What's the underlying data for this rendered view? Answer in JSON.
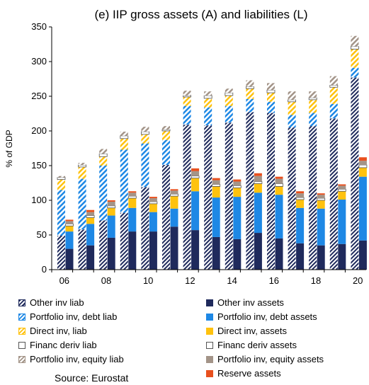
{
  "chart_data": {
    "type": "bar",
    "stacked": true,
    "paired_bars": true,
    "title": "(e) IIP gross assets (A) and liabilities (L)",
    "ylabel": "% of GDP",
    "xlabel": "",
    "ylim": [
      0,
      350
    ],
    "yticks": [
      0,
      50,
      100,
      150,
      200,
      250,
      300,
      350
    ],
    "categories": [
      "06",
      "07",
      "08",
      "09",
      "10",
      "11",
      "12",
      "13",
      "14",
      "15",
      "16",
      "17",
      "18",
      "19",
      "20"
    ],
    "xtick_labels": [
      "06",
      "08",
      "10",
      "12",
      "14",
      "16",
      "18",
      "20"
    ],
    "grid": false,
    "legend_position": "bottom",
    "series": [
      {
        "name": "Other inv liab",
        "side": "L",
        "color": "#1f2a5c",
        "pattern": "hatch",
        "values": [
          49,
          58,
          71,
          82,
          119,
          151,
          209,
          208,
          212,
          227,
          226,
          205,
          207,
          218,
          277
        ]
      },
      {
        "name": "Other inv assets",
        "side": "A",
        "color": "#1f2a5c",
        "pattern": "solid",
        "values": [
          30,
          35,
          46,
          55,
          55,
          62,
          57,
          47,
          44,
          53,
          45,
          38,
          35,
          37,
          42
        ]
      },
      {
        "name": "Portfolio inv, debt liab",
        "side": "L",
        "color": "#1e88e5",
        "pattern": "hatch",
        "values": [
          66,
          73,
          79,
          91,
          63,
          36,
          27,
          26,
          24,
          19,
          16,
          18,
          19,
          21,
          14
        ]
      },
      {
        "name": "Portfolio inv, debt assets",
        "side": "A",
        "color": "#1e88e5",
        "pattern": "solid",
        "values": [
          25,
          31,
          32,
          34,
          28,
          26,
          56,
          57,
          61,
          58,
          63,
          51,
          53,
          64,
          92
        ]
      },
      {
        "name": "Direct inv, liab",
        "side": "L",
        "color": "#ffc20e",
        "pattern": "hatch",
        "values": [
          15,
          17,
          13,
          16,
          13,
          13,
          13,
          13,
          15,
          15,
          13,
          19,
          19,
          24,
          27
        ]
      },
      {
        "name": "Direct inv, assets",
        "side": "A",
        "color": "#ffc20e",
        "pattern": "solid",
        "values": [
          8,
          9,
          11,
          14,
          12,
          18,
          19,
          16,
          13,
          13,
          12,
          12,
          12,
          12,
          13
        ]
      },
      {
        "name": "Financ deriv liab",
        "side": "L",
        "color": "#ffffff",
        "pattern": "outline",
        "values": [
          3,
          3,
          4,
          4,
          4,
          2,
          2,
          4,
          4,
          3,
          4,
          3,
          3,
          3,
          4
        ]
      },
      {
        "name": "Financ deriv assets",
        "side": "A",
        "color": "#ffffff",
        "pattern": "outline",
        "values": [
          3,
          3,
          3,
          3,
          3,
          3,
          3,
          3,
          3,
          3,
          4,
          3,
          3,
          3,
          4
        ]
      },
      {
        "name": "Portfolio inv, equity liab",
        "side": "L",
        "color": "#a39488",
        "pattern": "hatch",
        "values": [
          2,
          3,
          7,
          6,
          7,
          5,
          7,
          6,
          6,
          9,
          10,
          12,
          9,
          13,
          15
        ]
      },
      {
        "name": "Portfolio inv, equity assets",
        "side": "A",
        "color": "#a39488",
        "pattern": "solid",
        "values": [
          4,
          5,
          6,
          5,
          5,
          5,
          7,
          6,
          6,
          8,
          7,
          6,
          5,
          5,
          6
        ]
      },
      {
        "name": "Reserve assets",
        "side": "A",
        "color": "#e8501e",
        "pattern": "solid",
        "values": [
          2,
          3,
          2,
          2,
          2,
          2,
          4,
          3,
          3,
          4,
          3,
          3,
          2,
          2,
          5
        ]
      }
    ],
    "source": "Source: Eurostat"
  },
  "legend_order": [
    0,
    1,
    2,
    3,
    4,
    5,
    6,
    7,
    8,
    9,
    10
  ]
}
